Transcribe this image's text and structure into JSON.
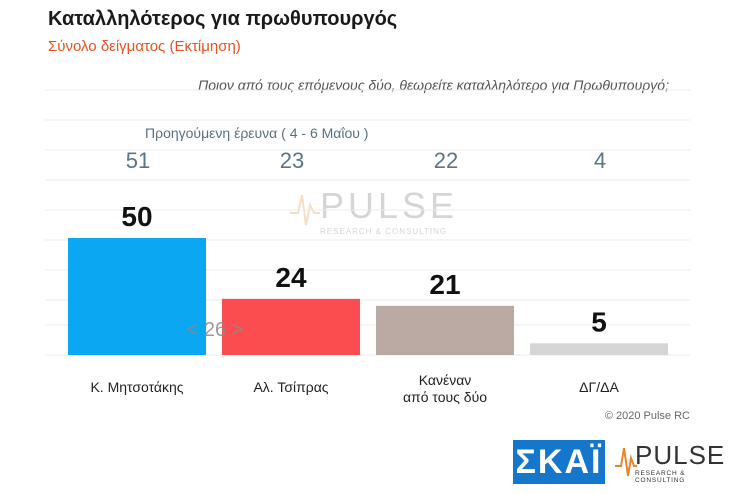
{
  "title": "Καταλληλότερος για πρωθυπουργός",
  "subtitle": "Σύνολο δείγματος    (Εκτίμηση)",
  "question": "Ποιον από τους επόμενους δύο, θεωρείτε καταλληλότερο για Πρωθυπουργό;",
  "previous_survey_label": "Προηγούμενη έρευνα   ( 4 - 6 Μαΐου )",
  "previous_values": [
    "51",
    "23",
    "22",
    "4"
  ],
  "annotation": "< 26 >",
  "copyright": "© 2020 Pulse RC",
  "logos": {
    "skai": "ΣΚΑΪ",
    "pulse": "PULSE",
    "pulse_sub": "RESEARCH & CONSULTING"
  },
  "colors": {
    "bar1": "#0ba7f2",
    "bar2": "#fb4d4f",
    "bar3": "#bba9a3",
    "bar4": "#d6d6d6",
    "subtitle": "#e8521e"
  },
  "chart_data": {
    "type": "bar",
    "categories": [
      "Κ. Μητσοτάκης",
      "Αλ. Τσίπρας",
      "Κανέναν από τους δύο",
      "ΔΓ/ΔΑ"
    ],
    "values": [
      50,
      24,
      21,
      5
    ],
    "value_labels": [
      "50",
      "24",
      "21",
      "5"
    ],
    "ylim": [
      0,
      60
    ],
    "grid": true
  }
}
